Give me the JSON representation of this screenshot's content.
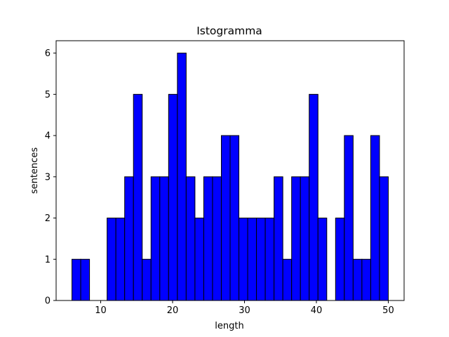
{
  "chart_data": {
    "type": "bar",
    "title": "Istogramma",
    "xlabel": "length",
    "ylabel": "sentences",
    "bin_edges": [
      6,
      7.2222,
      8.4444,
      9.6667,
      10.8889,
      12.1111,
      13.3333,
      14.5556,
      15.7778,
      17,
      18.2222,
      19.4444,
      20.6667,
      21.8889,
      23.1111,
      24.3333,
      25.5556,
      26.7778,
      28,
      29.2222,
      30.4444,
      31.6667,
      32.8889,
      34.1111,
      35.3333,
      36.5556,
      37.7778,
      39,
      40.2222,
      41.4444,
      42.6667,
      43.8889,
      45.1111,
      46.3333,
      47.5556,
      48.7778,
      50
    ],
    "values": [
      1,
      1,
      0,
      0,
      2,
      2,
      3,
      5,
      1,
      3,
      3,
      5,
      6,
      3,
      2,
      3,
      3,
      4,
      4,
      2,
      2,
      2,
      2,
      3,
      1,
      3,
      3,
      5,
      2,
      0,
      2,
      4,
      1,
      1,
      4,
      3
    ],
    "xlim": [
      3.8,
      52.2
    ],
    "ylim": [
      0,
      6.3
    ],
    "xticks": [
      10,
      20,
      30,
      40,
      50
    ],
    "yticks": [
      0,
      1,
      2,
      3,
      4,
      5,
      6
    ],
    "bar_color": "#0000ff",
    "edge_color": "#000000",
    "grid": false
  }
}
